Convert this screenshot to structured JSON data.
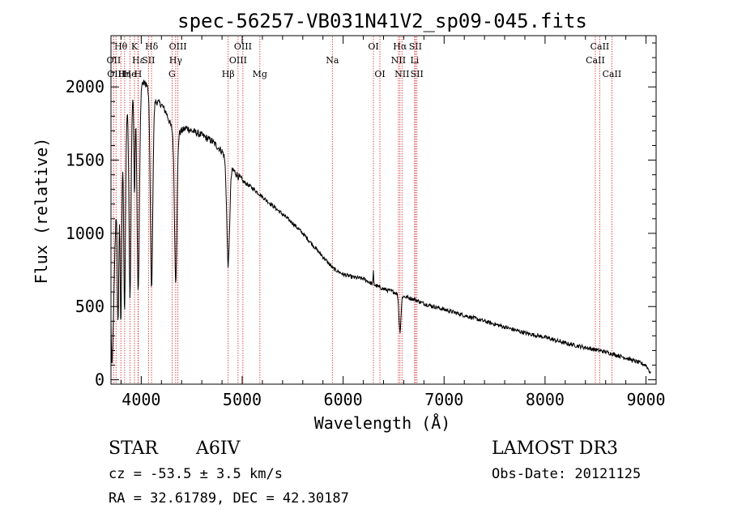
{
  "chart_data": {
    "type": "line",
    "title": "spec-56257-VB031N41V2_sp09-045.fits",
    "xlabel": "Wavelength (Å)",
    "ylabel": "Flux (relative)",
    "xlim": [
      3700,
      9100
    ],
    "ylim": [
      -30,
      2350
    ],
    "x_ticks": [
      4000,
      5000,
      6000,
      7000,
      8000,
      9000
    ],
    "x_tick_labels": [
      "4000",
      "5000",
      "6000",
      "7000",
      "8000",
      "9000"
    ],
    "y_ticks": [
      0,
      500,
      1000,
      1500,
      2000
    ],
    "y_tick_labels": [
      "0",
      "500",
      "1000",
      "1500",
      "2000"
    ],
    "grid": false,
    "spectrum_anchors": [
      [
        3700,
        400
      ],
      [
        3710,
        40
      ],
      [
        3720,
        300
      ],
      [
        3740,
        900
      ],
      [
        3760,
        1400
      ],
      [
        3780,
        1550
      ],
      [
        3800,
        1600
      ],
      [
        3830,
        1700
      ],
      [
        3860,
        1850
      ],
      [
        3900,
        1950
      ],
      [
        3950,
        2000
      ],
      [
        4000,
        2030
      ],
      [
        4050,
        2020
      ],
      [
        4100,
        1920
      ],
      [
        4150,
        1900
      ],
      [
        4200,
        1880
      ],
      [
        4250,
        1820
      ],
      [
        4300,
        1720
      ],
      [
        4350,
        1670
      ],
      [
        4400,
        1700
      ],
      [
        4450,
        1720
      ],
      [
        4500,
        1700
      ],
      [
        4600,
        1670
      ],
      [
        4700,
        1630
      ],
      [
        4800,
        1560
      ],
      [
        4900,
        1440
      ],
      [
        5000,
        1360
      ],
      [
        5100,
        1310
      ],
      [
        5200,
        1250
      ],
      [
        5300,
        1190
      ],
      [
        5400,
        1130
      ],
      [
        5500,
        1070
      ],
      [
        5600,
        1000
      ],
      [
        5700,
        920
      ],
      [
        5800,
        840
      ],
      [
        5900,
        760
      ],
      [
        6000,
        720
      ],
      [
        6100,
        700
      ],
      [
        6200,
        690
      ],
      [
        6300,
        650
      ],
      [
        6400,
        620
      ],
      [
        6500,
        600
      ],
      [
        6600,
        570
      ],
      [
        6700,
        550
      ],
      [
        6800,
        520
      ],
      [
        6900,
        500
      ],
      [
        7000,
        480
      ],
      [
        7200,
        440
      ],
      [
        7400,
        400
      ],
      [
        7600,
        360
      ],
      [
        7800,
        320
      ],
      [
        8000,
        290
      ],
      [
        8200,
        250
      ],
      [
        8400,
        220
      ],
      [
        8600,
        190
      ],
      [
        8800,
        150
      ],
      [
        9000,
        100
      ],
      [
        9050,
        40
      ]
    ],
    "absorption_features": [
      {
        "center": 3770,
        "depth": 1100,
        "width": 8
      },
      {
        "center": 3798,
        "depth": 1200,
        "width": 8
      },
      {
        "center": 3835,
        "depth": 1250,
        "width": 9
      },
      {
        "center": 3889,
        "depth": 1350,
        "width": 10
      },
      {
        "center": 3933,
        "depth": 700,
        "width": 6
      },
      {
        "center": 3970,
        "depth": 1400,
        "width": 12
      },
      {
        "center": 4102,
        "depth": 1300,
        "width": 12
      },
      {
        "center": 4341,
        "depth": 1000,
        "width": 12
      },
      {
        "center": 4861,
        "depth": 700,
        "width": 14
      },
      {
        "center": 6563,
        "depth": 250,
        "width": 10
      }
    ],
    "emission_features": [
      {
        "center": 6300,
        "height": 90,
        "width": 3
      }
    ],
    "line_markers": [
      {
        "label": "Hθ",
        "wavelength": 3798,
        "row": 0
      },
      {
        "label": "K",
        "wavelength": 3933,
        "row": 0
      },
      {
        "label": "Hδ",
        "wavelength": 4102,
        "row": 0
      },
      {
        "label": "OIII",
        "wavelength": 4363,
        "row": 0
      },
      {
        "label": "OIII",
        "wavelength": 5007,
        "row": 0
      },
      {
        "label": "OI",
        "wavelength": 6300,
        "row": 0
      },
      {
        "label": "Hα",
        "wavelength": 6563,
        "row": 0
      },
      {
        "label": "SII",
        "wavelength": 6716,
        "row": 0
      },
      {
        "label": "CaII",
        "wavelength": 8542,
        "row": 0
      },
      {
        "label": "OII",
        "wavelength": 3727,
        "row": 1
      },
      {
        "label": "Hε",
        "wavelength": 3970,
        "row": 1
      },
      {
        "label": "SII",
        "wavelength": 4072,
        "row": 1
      },
      {
        "label": "Hγ",
        "wavelength": 4341,
        "row": 1
      },
      {
        "label": "OIII",
        "wavelength": 4959,
        "row": 1
      },
      {
        "label": "Na",
        "wavelength": 5893,
        "row": 1
      },
      {
        "label": "NII",
        "wavelength": 6548,
        "row": 1
      },
      {
        "label": "Li",
        "wavelength": 6708,
        "row": 1
      },
      {
        "label": "CaII",
        "wavelength": 8498,
        "row": 1
      },
      {
        "label": "OIII",
        "wavelength": 3750,
        "row": 2
      },
      {
        "label": "Hη",
        "wavelength": 3835,
        "row": 2
      },
      {
        "label": "He",
        "wavelength": 3889,
        "row": 2
      },
      {
        "label": "H",
        "wavelength": 3968,
        "row": 2
      },
      {
        "label": "G",
        "wavelength": 4305,
        "row": 2
      },
      {
        "label": "Hβ",
        "wavelength": 4861,
        "row": 2
      },
      {
        "label": "Mg",
        "wavelength": 5175,
        "row": 2
      },
      {
        "label": "OI",
        "wavelength": 6364,
        "row": 2
      },
      {
        "label": "NII",
        "wavelength": 6583,
        "row": 2
      },
      {
        "label": "SII",
        "wavelength": 6731,
        "row": 2
      },
      {
        "label": "CaII",
        "wavelength": 8662,
        "row": 2
      }
    ],
    "marker_color": "#d62728",
    "line_color": "#000000"
  },
  "info": {
    "object_class": "STAR",
    "subclass": "A6IV",
    "survey": "LAMOST DR3",
    "redshift_text": "cz = -53.5 ± 3.5 km/s",
    "obs_date_text": "Obs-Date: 20121125",
    "coords_text": "RA =  32.61789, DEC =  42.30187"
  }
}
